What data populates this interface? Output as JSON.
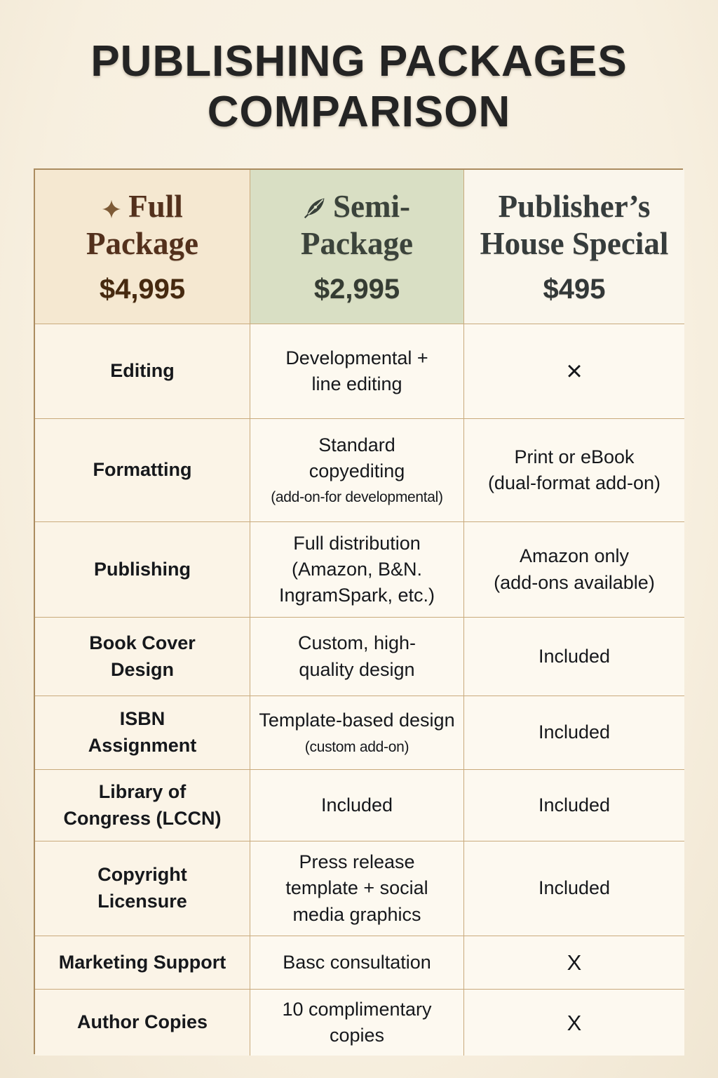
{
  "title": {
    "line1": "PUBLISHING PACKAGES",
    "line2": "COMPARISON"
  },
  "colors": {
    "page_bg": "#f8f1e4",
    "table_border": "#c9aa7c",
    "title_text": "#242424",
    "body_text": "#16181c"
  },
  "table": {
    "columns": [
      {
        "id": "full",
        "icon": "sparkle-icon",
        "name": "Full Package",
        "price": "$4,995",
        "bg": "#f5e8d1",
        "name_color": "#53301c",
        "price_color": "#46290f",
        "icon_color": "#7d5a36"
      },
      {
        "id": "semi",
        "icon": "leaf-icon",
        "name": "Semi-Package",
        "price": "$2,995",
        "bg": "#d9dfc4",
        "name_color": "#3b433b",
        "price_color": "#353c33",
        "icon_color": "#39413a"
      },
      {
        "id": "special",
        "icon": null,
        "name": "Publisher’s House Special",
        "price": "$495",
        "bg": "#faf6ec",
        "name_color": "#363c3c",
        "price_color": "#333838",
        "icon_color": null
      }
    ],
    "rows": [
      {
        "feature": "Editing",
        "semi": "Developmental +\nline editing",
        "semi_note": "",
        "special": "×"
      },
      {
        "feature": "Formatting",
        "semi": "Standard\ncopyediting",
        "semi_note": "(add-on-for developmental)",
        "special": "Print or eBook\n(dual-format add-on)"
      },
      {
        "feature": "Publishing",
        "semi": "Full distribution\n(Amazon, B&N.\nIngramSpark, etc.)",
        "semi_note": "",
        "special": "Amazon only\n(add-ons available)"
      },
      {
        "feature": "Book Cover\nDesign",
        "semi": "Custom, high-\nquality design",
        "semi_note": "",
        "special": "Included"
      },
      {
        "feature": "ISBN\nAssignment",
        "semi": "Template-based design",
        "semi_note": "(custom add-on)",
        "special": "Included"
      },
      {
        "feature": "Library of\nCongress (LCCN)",
        "semi": "Included",
        "semi_note": "",
        "special": "Included"
      },
      {
        "feature": "Copyright\nLicensure",
        "semi": "Press release\ntemplate + social\nmedia graphics",
        "semi_note": "",
        "special": "Included"
      },
      {
        "feature": "Marketing Support",
        "semi": "Basc consultation",
        "semi_note": "",
        "special": "X"
      },
      {
        "feature": "Author Copies",
        "semi": "10 complimentary\ncopies",
        "semi_note": "",
        "special": "X"
      }
    ]
  }
}
